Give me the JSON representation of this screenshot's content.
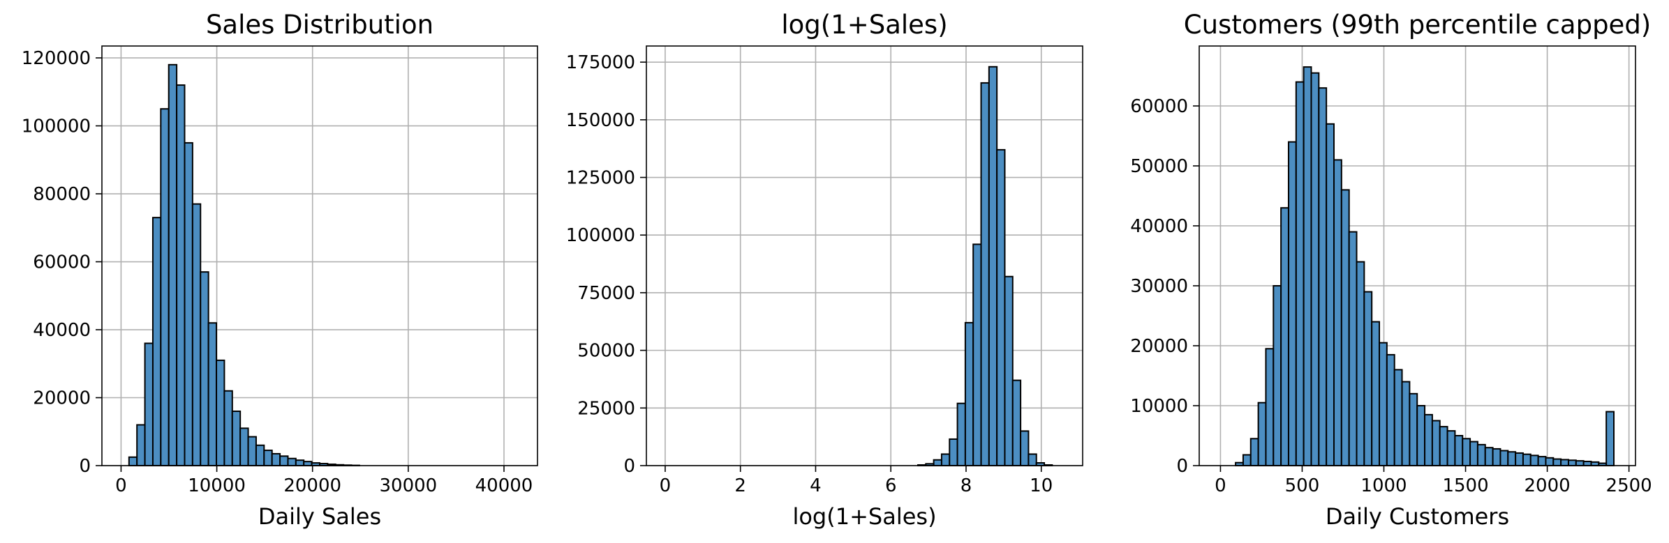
{
  "chart_data": [
    {
      "type": "bar",
      "title": "Sales Distribution",
      "xlabel": "Daily Sales",
      "ylabel": "",
      "xlim": [
        -2000,
        43500
      ],
      "ylim": [
        0,
        123500
      ],
      "xticks": [
        0,
        10000,
        20000,
        30000,
        40000
      ],
      "yticks": [
        0,
        20000,
        40000,
        60000,
        80000,
        100000,
        120000
      ],
      "grid": true,
      "bar_color": "#4C8EC2",
      "bin_width": 830,
      "bins_start": [
        830,
        1660,
        2490,
        3320,
        4150,
        4980,
        5810,
        6640,
        7470,
        8300,
        9130,
        9960,
        10790,
        11620,
        12450,
        13280,
        14110,
        14940,
        15770,
        16600,
        17430,
        18260,
        19090,
        19920,
        20750,
        21580,
        22410,
        23240,
        24070
      ],
      "counts": [
        2500,
        12000,
        36000,
        73000,
        105000,
        118000,
        112000,
        95000,
        77000,
        57000,
        42000,
        31000,
        22000,
        16000,
        11000,
        8500,
        6000,
        4500,
        3500,
        2800,
        2100,
        1600,
        1200,
        800,
        600,
        400,
        250,
        150,
        80
      ]
    },
    {
      "type": "bar",
      "title": "log(1+Sales)",
      "xlabel": "log(1+Sales)",
      "ylabel": "",
      "xlim": [
        -0.5,
        11.1
      ],
      "ylim": [
        0,
        182000
      ],
      "xticks": [
        0,
        2,
        4,
        6,
        8,
        10
      ],
      "yticks": [
        0,
        25000,
        50000,
        75000,
        100000,
        125000,
        150000,
        175000
      ],
      "grid": true,
      "bar_color": "#4C8EC2",
      "bin_width": 0.21,
      "bins_start": [
        6.72,
        6.93,
        7.14,
        7.35,
        7.56,
        7.77,
        7.98,
        8.19,
        8.4,
        8.61,
        8.82,
        9.03,
        9.24,
        9.45,
        9.66,
        9.87,
        10.08
      ],
      "counts": [
        300,
        800,
        2500,
        5000,
        11500,
        27000,
        62000,
        96000,
        166000,
        173000,
        137000,
        82000,
        37000,
        15000,
        5000,
        1200,
        300
      ]
    },
    {
      "type": "bar",
      "title": "Customers (99th percentile capped)",
      "xlabel": "Daily Customers",
      "ylabel": "",
      "xlim": [
        -130,
        2540
      ],
      "ylim": [
        0,
        70000
      ],
      "xticks": [
        0,
        500,
        1000,
        1500,
        2000,
        2500
      ],
      "yticks": [
        0,
        10000,
        20000,
        30000,
        40000,
        50000,
        60000
      ],
      "grid": true,
      "bar_color": "#4C8EC2",
      "bin_width": 46.3,
      "bins_start": [
        92.6,
        138.9,
        185.2,
        231.5,
        277.8,
        324.1,
        370.4,
        416.7,
        463.0,
        509.3,
        555.6,
        601.9,
        648.2,
        694.5,
        740.8,
        787.1,
        833.4,
        879.7,
        926.0,
        972.3,
        1018.6,
        1064.9,
        1111.2,
        1157.5,
        1203.8,
        1250.1,
        1296.4,
        1342.7,
        1389.0,
        1435.3,
        1481.6,
        1527.9,
        1574.2,
        1620.5,
        1666.8,
        1713.1,
        1759.4,
        1805.7,
        1852.0,
        1898.3,
        1944.6,
        1990.9,
        2037.2,
        2083.5,
        2129.8,
        2176.1,
        2222.4,
        2268.7,
        2315.0,
        2361.3
      ],
      "counts": [
        500,
        1800,
        4500,
        10500,
        19500,
        30000,
        43000,
        54000,
        64000,
        66500,
        65500,
        63000,
        57000,
        51000,
        46000,
        39000,
        34000,
        29000,
        24000,
        20500,
        18500,
        16000,
        14000,
        12000,
        10000,
        8500,
        7500,
        6500,
        5800,
        5000,
        4500,
        4000,
        3500,
        3000,
        2800,
        2500,
        2300,
        2100,
        1900,
        1700,
        1500,
        1300,
        1100,
        1000,
        900,
        800,
        700,
        600,
        400,
        9000
      ]
    }
  ]
}
